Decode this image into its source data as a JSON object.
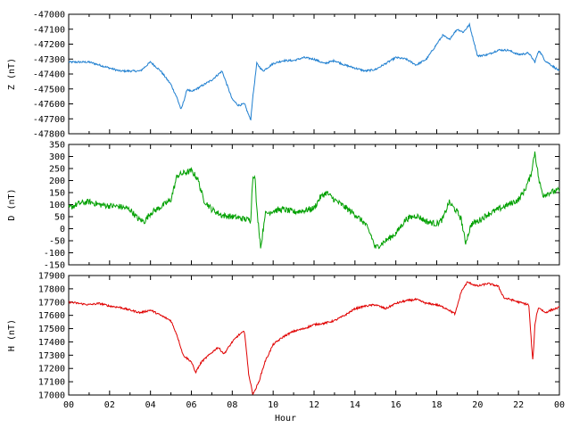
{
  "chart_data": [
    {
      "type": "line",
      "ylabel": "Z (nT)",
      "ylim": [
        -47800,
        -47000
      ],
      "yticks": [
        -47000,
        -47100,
        -47200,
        -47300,
        -47400,
        -47500,
        -47600,
        -47700,
        -47800
      ],
      "grid": false,
      "series": [
        {
          "color": "#1f7fd0",
          "x": [
            0,
            0.5,
            1,
            1.5,
            2,
            2.5,
            3,
            3.5,
            4,
            4.5,
            5,
            5.3,
            5.5,
            5.8,
            6,
            6.5,
            7,
            7.5,
            8,
            8.3,
            8.6,
            8.9,
            9,
            9.2,
            9.5,
            10,
            10.5,
            11,
            11.5,
            12,
            12.5,
            13,
            13.5,
            14,
            14.5,
            15,
            15.5,
            16,
            16.5,
            17,
            17.5,
            18,
            18.3,
            18.6,
            19,
            19.3,
            19.6,
            20,
            20.5,
            21,
            21.5,
            22,
            22.5,
            22.8,
            23,
            23.3,
            23.6,
            24
          ],
          "values": [
            -47320,
            -47320,
            -47320,
            -47340,
            -47360,
            -47380,
            -47380,
            -47380,
            -47320,
            -47380,
            -47470,
            -47560,
            -47640,
            -47500,
            -47520,
            -47480,
            -47440,
            -47380,
            -47570,
            -47610,
            -47600,
            -47710,
            -47560,
            -47330,
            -47380,
            -47330,
            -47310,
            -47310,
            -47290,
            -47300,
            -47330,
            -47310,
            -47340,
            -47360,
            -47380,
            -47370,
            -47330,
            -47290,
            -47300,
            -47340,
            -47300,
            -47200,
            -47140,
            -47170,
            -47100,
            -47120,
            -47070,
            -47280,
            -47270,
            -47240,
            -47240,
            -47270,
            -47260,
            -47320,
            -47240,
            -47310,
            -47340,
            -47380
          ]
        }
      ]
    },
    {
      "type": "line",
      "ylabel": "D (nT)",
      "ylim": [
        -150,
        350
      ],
      "yticks": [
        350,
        300,
        250,
        200,
        150,
        100,
        50,
        0,
        -50,
        -100,
        -150
      ],
      "grid": false,
      "series": [
        {
          "color": "#00a000",
          "x": [
            0,
            0.5,
            1,
            1.5,
            2,
            2.5,
            3,
            3.4,
            3.7,
            4,
            4.5,
            5,
            5.3,
            5.6,
            6,
            6.3,
            6.6,
            7,
            7.5,
            8,
            8.3,
            8.6,
            8.9,
            9,
            9.1,
            9.2,
            9.4,
            9.6,
            10,
            10.5,
            11,
            11.5,
            12,
            12.3,
            12.6,
            13,
            13.5,
            14,
            14.5,
            14.8,
            15,
            15.5,
            16,
            16.5,
            17,
            17.5,
            18,
            18.3,
            18.6,
            19,
            19.2,
            19.4,
            19.7,
            20,
            20.5,
            21,
            21.5,
            22,
            22.3,
            22.6,
            22.8,
            23,
            23.2,
            23.5,
            24
          ],
          "values": [
            85,
            105,
            112,
            100,
            95,
            92,
            80,
            40,
            30,
            65,
            90,
            120,
            220,
            230,
            240,
            210,
            120,
            80,
            55,
            50,
            45,
            40,
            35,
            210,
            230,
            80,
            -80,
            60,
            75,
            80,
            70,
            75,
            85,
            130,
            150,
            120,
            90,
            60,
            20,
            -30,
            -80,
            -50,
            -20,
            40,
            55,
            30,
            20,
            40,
            110,
            70,
            40,
            -60,
            20,
            30,
            60,
            80,
            100,
            120,
            160,
            220,
            320,
            200,
            140,
            150,
            160
          ]
        }
      ]
    },
    {
      "type": "line",
      "ylabel": "H (nT)",
      "ylim": [
        17000,
        17900
      ],
      "yticks": [
        17900,
        17800,
        17700,
        17600,
        17500,
        17400,
        17300,
        17200,
        17100,
        17000
      ],
      "grid": false,
      "series": [
        {
          "color": "#e00000",
          "x": [
            0,
            0.5,
            1,
            1.5,
            2,
            2.5,
            3,
            3.5,
            4,
            4.5,
            5,
            5.3,
            5.6,
            6,
            6.2,
            6.5,
            7,
            7.3,
            7.6,
            8,
            8.3,
            8.6,
            8.8,
            9,
            9.1,
            9.3,
            9.6,
            10,
            10.5,
            11,
            11.5,
            12,
            12.5,
            13,
            13.5,
            14,
            14.5,
            15,
            15.5,
            16,
            16.5,
            17,
            17.5,
            18,
            18.5,
            18.9,
            19.2,
            19.5,
            20,
            20.5,
            21,
            21.3,
            21.6,
            22,
            22.5,
            22.7,
            22.8,
            22.9,
            23,
            23.3,
            23.6,
            24
          ],
          "values": [
            17700,
            17690,
            17680,
            17690,
            17670,
            17660,
            17640,
            17620,
            17640,
            17600,
            17560,
            17450,
            17300,
            17250,
            17170,
            17250,
            17320,
            17360,
            17310,
            17400,
            17450,
            17480,
            17160,
            17010,
            17030,
            17100,
            17250,
            17380,
            17440,
            17480,
            17500,
            17530,
            17540,
            17560,
            17600,
            17650,
            17670,
            17680,
            17650,
            17690,
            17710,
            17720,
            17690,
            17680,
            17650,
            17610,
            17780,
            17850,
            17820,
            17840,
            17820,
            17730,
            17720,
            17700,
            17680,
            17250,
            17520,
            17620,
            17660,
            17620,
            17640,
            17660
          ]
        }
      ]
    }
  ],
  "x_axis": {
    "label": "Hour",
    "range": [
      0,
      24
    ],
    "tick_labels": [
      "00",
      "02",
      "04",
      "06",
      "08",
      "10",
      "12",
      "14",
      "16",
      "18",
      "20",
      "22",
      "00"
    ]
  }
}
